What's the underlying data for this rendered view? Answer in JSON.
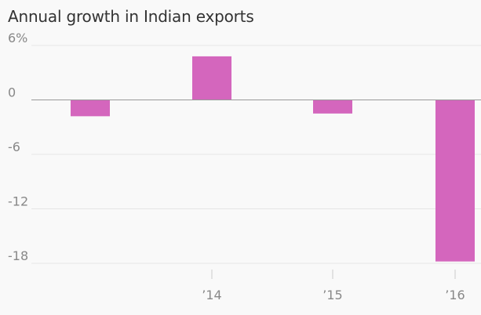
{
  "chart_data": {
    "type": "bar",
    "title": "Annual growth in Indian exports",
    "xlabel": "",
    "ylabel": "",
    "x_tick_labels": [
      "’14",
      "’15",
      "’16"
    ],
    "y_tick_labels": [
      "6%",
      "0",
      "-6",
      "-12",
      "-18"
    ],
    "y_ticks": [
      6,
      0,
      -6,
      -12,
      -18
    ],
    "ylim": [
      -18,
      6
    ],
    "series": [
      {
        "values": [
          -1.8,
          4.8,
          -1.5,
          -17.8
        ]
      }
    ],
    "bar_color": "#d466bd",
    "grid": true,
    "legend": "none"
  }
}
